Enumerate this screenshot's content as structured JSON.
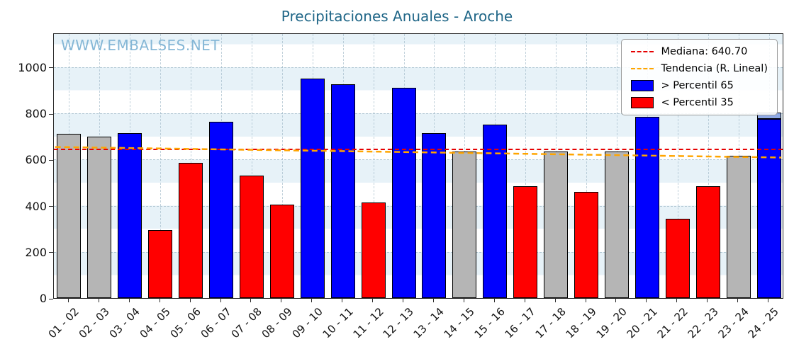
{
  "title": "Precipitaciones Anuales - Aroche",
  "watermark": "WWW.EMBALSES.NET",
  "legend": {
    "median_label": "Mediana: 640.70",
    "trend_label": "Tendencia (R. Lineal)",
    "p65_label": "> Percentil 65",
    "p35_label": "< Percentil 35"
  },
  "colors": {
    "high": "#0000ff",
    "low": "#ff0000",
    "mid": "#b5b5b5",
    "overlay": "#8fa9e6",
    "median": "#e60000",
    "trend": "#ffa500",
    "title": "#1f6687",
    "watermark": "#85b7d6",
    "bar_edge": "#000000"
  },
  "chart_data": {
    "type": "bar",
    "title": "Precipitaciones Anuales - Aroche",
    "xlabel": "",
    "ylabel": "",
    "ylim": [
      0,
      1150
    ],
    "yticks": [
      0,
      200,
      400,
      600,
      800,
      1000
    ],
    "grid": true,
    "legend_position": "upper right",
    "categories": [
      "01 - 02",
      "02 - 03",
      "03 - 04",
      "04 - 05",
      "05 - 06",
      "06 - 07",
      "07 - 08",
      "08 - 09",
      "09 - 10",
      "10 - 11",
      "11 - 12",
      "12 - 13",
      "13 - 14",
      "14 - 15",
      "15 - 16",
      "16 - 17",
      "17 - 18",
      "18 - 19",
      "19 - 20",
      "20 - 21",
      "21 - 22",
      "22 - 23",
      "23 - 24",
      "24 - 25"
    ],
    "values": [
      710,
      700,
      715,
      295,
      585,
      765,
      530,
      405,
      950,
      925,
      415,
      910,
      715,
      635,
      750,
      485,
      635,
      460,
      635,
      785,
      345,
      485,
      615,
      775
    ],
    "bar_categories": [
      "mid",
      "mid",
      "high",
      "low",
      "low",
      "high",
      "low",
      "low",
      "high",
      "high",
      "low",
      "high",
      "high",
      "mid",
      "high",
      "low",
      "mid",
      "low",
      "mid",
      "high",
      "low",
      "low",
      "mid",
      "high"
    ],
    "partial_overlay": {
      "index": 23,
      "from": 775,
      "to": 805
    },
    "median": 640.7,
    "trend_line": {
      "y_start": 658,
      "y_end": 612
    }
  }
}
